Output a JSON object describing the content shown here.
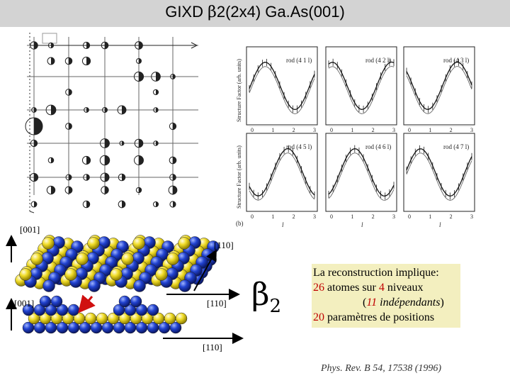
{
  "title": {
    "prefix": "GIXD ",
    "beta": "β",
    "suffix": "2(2x4) Ga.As(001)"
  },
  "axes_labels": {
    "dir_001_top": "[001]",
    "dir_110_top": "[110]",
    "dir_001_bottom": "[001]",
    "dir_110_mid": "[110]",
    "dir_110_bottom": "[110]"
  },
  "structure_symbol": {
    "letter": "β",
    "subscript": "2"
  },
  "info": {
    "line1": "La reconstruction implique:",
    "line2_num": "26",
    "line2_a": " atomes sur ",
    "line2_num2": "4",
    "line2_b": " niveaux",
    "line3_open": "(",
    "line3_num": "11",
    "line3_word": " indépendants",
    "line3_close": ")",
    "line4_num": "20",
    "line4_text": " paramètres de positions"
  },
  "citation": "Phys. Rev. B 54, 17538 (1996)",
  "rod_plots": {
    "labels": [
      "rod (4 1 l)",
      "rod (4 2 l)",
      "rod (4 3 l)",
      "rod (4 5 l)",
      "rod (4 6 l)",
      "rod (4 7 l)"
    ],
    "ylabel": "Structure Factor (arb. units)",
    "xlabel": "l",
    "panel_tag": "(b)",
    "x_ticks": [
      "0",
      "1",
      "2",
      "3"
    ]
  },
  "colors": {
    "title_bg": "#d3d3d3",
    "info_bg": "#f3efbf",
    "red": "#c00000",
    "atom_yellow": "#f0dc28",
    "atom_blue": "#1f3cc8"
  }
}
